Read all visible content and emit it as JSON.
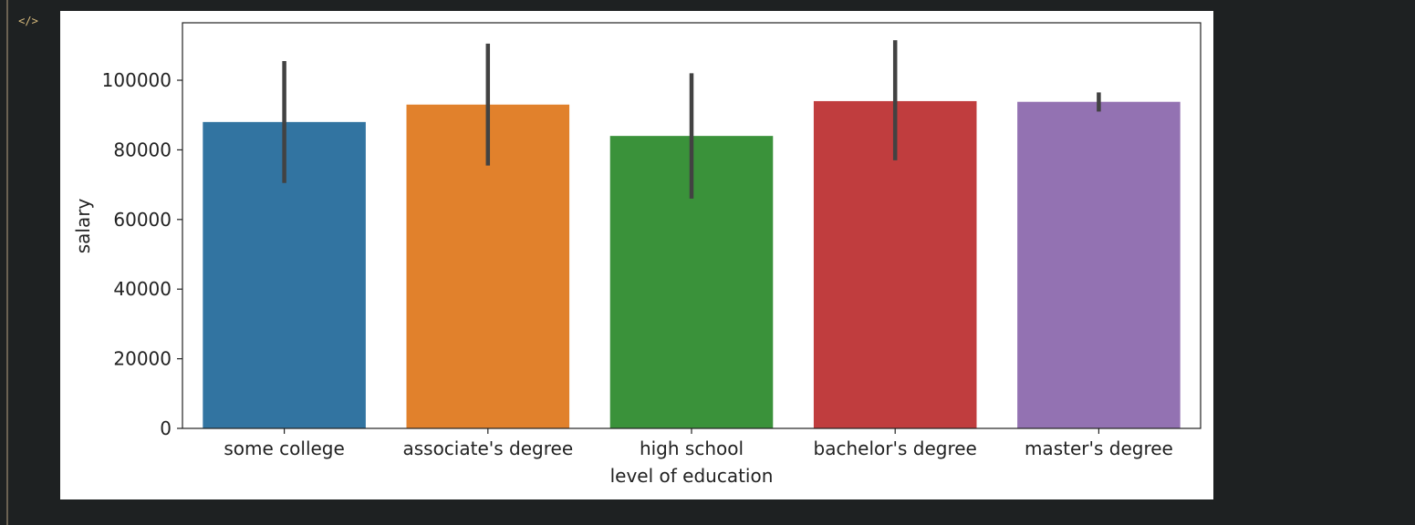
{
  "cell": {
    "icon": "code-icon",
    "icon_glyph": "</>"
  },
  "chart_data": {
    "type": "bar",
    "title": "",
    "xlabel": "level of education",
    "ylabel": "salary",
    "ylim": [
      0,
      116500
    ],
    "yticks": [
      0,
      20000,
      40000,
      60000,
      80000,
      100000
    ],
    "ytick_labels": [
      "0",
      "20000",
      "40000",
      "60000",
      "80000",
      "100000"
    ],
    "categories": [
      "some college",
      "associate's degree",
      "high school",
      "bachelor's degree",
      "master's degree"
    ],
    "values": [
      88000,
      93000,
      84000,
      94000,
      93800
    ],
    "error_low": [
      70500,
      75500,
      66000,
      77000,
      91000
    ],
    "error_high": [
      105500,
      110500,
      102000,
      111500,
      96500
    ],
    "colors": [
      "#3274a1",
      "#e1812c",
      "#3a923a",
      "#c03d3e",
      "#9372b2"
    ],
    "errorbar_color": "#424242",
    "grid": false,
    "legend": "none"
  }
}
